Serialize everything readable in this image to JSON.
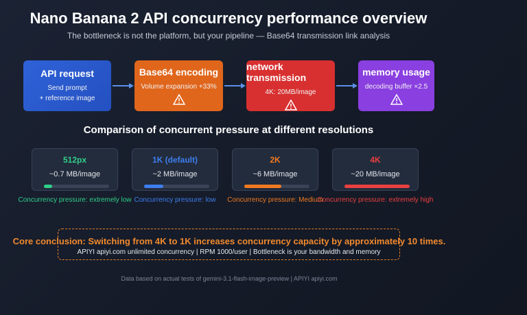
{
  "header": {
    "title": "Nano Banana 2 API concurrency performance overview",
    "subtitle": "The bottleneck is not the platform, but your pipeline — Base64 transmission link analysis"
  },
  "flow": [
    {
      "title": "API request",
      "lines": [
        "Send prompt",
        "+ reference image"
      ]
    },
    {
      "title": "Base64 encoding",
      "lines": [
        "Volume expansion +33%"
      ]
    },
    {
      "title": "network transmission",
      "lines": [
        "4K: 20MB/image"
      ]
    },
    {
      "title": "memory usage",
      "lines": [
        "decoding buffer ×2.5"
      ]
    }
  ],
  "comparison": {
    "title": "Comparison of concurrent pressure at different resolutions",
    "cards": [
      {
        "resolution": "512px",
        "size": "~0.7 MB/image",
        "pressure": "Concurrency pressure: extremely low"
      },
      {
        "resolution": "1K (default)",
        "size": "~2 MB/image",
        "pressure": "Concurrency pressure: low"
      },
      {
        "resolution": "2K",
        "size": "~6 MB/image",
        "pressure": "Concurrency pressure: Medium"
      },
      {
        "resolution": "4K",
        "size": "~20 MB/image",
        "pressure": "Concurrency pressure: extremely high"
      }
    ]
  },
  "conclusion": {
    "headline": "Core conclusion: Switching from 4K to 1K increases concurrency capacity by approximately 10 times.",
    "detail": "APIYI apiyi.com unlimited concurrency | RPM 1000/user | Bottleneck is your bandwidth and memory"
  },
  "footer": "Data based on actual tests of gemini-3.1-flash-image-preview | APIYI apiyi.com"
}
